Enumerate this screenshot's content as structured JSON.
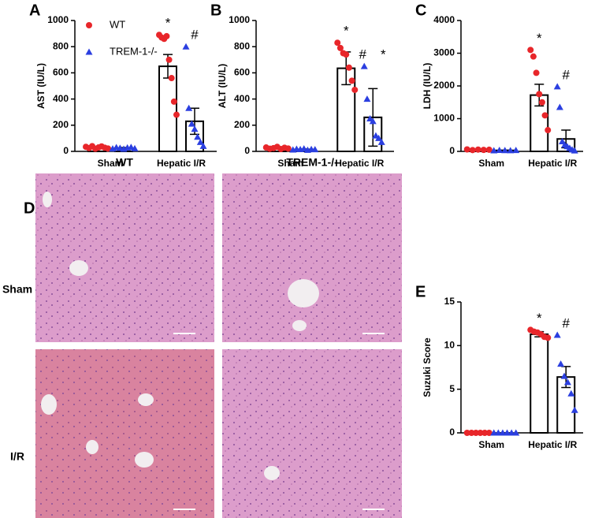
{
  "chart_data": [
    {
      "type": "bar",
      "panel": "A",
      "ylabel": "AST (IU/L)",
      "categories": [
        "Sham",
        "Hepatic I/R"
      ],
      "ylim": [
        0,
        1000
      ],
      "yticks": [
        0,
        200,
        400,
        600,
        800,
        1000
      ],
      "legend": "upper left",
      "series": [
        {
          "name": "WT",
          "color": "#e8262a",
          "marker": "circle",
          "values": [
            30,
            650
          ],
          "errors": [
            5,
            90
          ],
          "points": [
            [
              35,
              25,
              40,
              20,
              30,
              38,
              28,
              22
            ],
            [
              890,
              870,
              860,
              880,
              700,
              560,
              380,
              280
            ]
          ]
        },
        {
          "name": "TREM-1-/-",
          "color": "#2b3fe0",
          "marker": "triangle",
          "values": [
            25,
            230
          ],
          "errors": [
            4,
            100
          ],
          "points": [
            [
              20,
              30,
              25,
              18,
              28,
              32,
              22
            ],
            [
              800,
              330,
              210,
              170,
              110,
              70,
              40
            ]
          ]
        }
      ],
      "annotations": [
        {
          "text": "*",
          "series": 0,
          "category": 1
        },
        {
          "text": "#",
          "series": 1,
          "category": 1
        }
      ]
    },
    {
      "type": "bar",
      "panel": "B",
      "ylabel": "ALT (IU/L)",
      "categories": [
        "Sham",
        "Hepatic I/R"
      ],
      "ylim": [
        0,
        1000
      ],
      "yticks": [
        0,
        200,
        400,
        600,
        800,
        1000
      ],
      "series": [
        {
          "name": "WT",
          "color": "#e8262a",
          "marker": "circle",
          "values": [
            25,
            635
          ],
          "errors": [
            5,
            125
          ],
          "points": [
            [
              30,
              20,
              25,
              35,
              18,
              28,
              22
            ],
            [
              830,
              790,
              750,
              740,
              640,
              540,
              470
            ]
          ]
        },
        {
          "name": "TREM-1-/-",
          "color": "#2b3fe0",
          "marker": "triangle",
          "values": [
            15,
            260
          ],
          "errors": [
            3,
            220
          ],
          "points": [
            [
              12,
              18,
              15,
              20,
              10,
              16,
              14
            ],
            [
              650,
              400,
              250,
              230,
              120,
              100,
              70
            ]
          ]
        }
      ],
      "annotations": [
        {
          "text": "*",
          "series": 0,
          "category": 1
        },
        {
          "text": "#",
          "series": 1,
          "category": 1
        },
        {
          "text": "*",
          "series": 1,
          "category": 1
        }
      ]
    },
    {
      "type": "bar",
      "panel": "C",
      "ylabel": "LDH (IU/L)",
      "categories": [
        "Sham",
        "Hepatic I/R"
      ],
      "ylim": [
        0,
        4000
      ],
      "yticks": [
        0,
        1000,
        2000,
        3000,
        4000
      ],
      "series": [
        {
          "name": "WT",
          "color": "#e8262a",
          "marker": "circle",
          "values": [
            50,
            1720
          ],
          "errors": [
            10,
            330
          ],
          "points": [
            [
              60,
              40,
              55,
              45,
              50
            ],
            [
              3100,
              2900,
              2400,
              1750,
              1500,
              1100,
              650
            ]
          ]
        },
        {
          "name": "TREM-1-/-",
          "color": "#2b3fe0",
          "marker": "triangle",
          "values": [
            30,
            380
          ],
          "errors": [
            6,
            270
          ],
          "points": [
            [
              25,
              35,
              30,
              28,
              32
            ],
            [
              1980,
              1350,
              300,
              200,
              150,
              100,
              50,
              20
            ]
          ]
        }
      ],
      "annotations": [
        {
          "text": "*",
          "series": 0,
          "category": 1
        },
        {
          "text": "#",
          "series": 1,
          "category": 1
        }
      ]
    },
    {
      "type": "bar",
      "panel": "E",
      "ylabel": "Suzuki Score",
      "categories": [
        "Sham",
        "Hepatic I/R"
      ],
      "ylim": [
        0,
        15
      ],
      "yticks": [
        0,
        5,
        10,
        15
      ],
      "series": [
        {
          "name": "WT",
          "color": "#e8262a",
          "marker": "circle",
          "values": [
            0,
            11.3
          ],
          "errors": [
            0,
            0.3
          ],
          "points": [
            [
              0,
              0,
              0,
              0,
              0,
              0
            ],
            [
              11.8,
              11.6,
              11.5,
              11.3,
              11.0,
              10.9
            ]
          ]
        },
        {
          "name": "TREM-1-/-",
          "color": "#2b3fe0",
          "marker": "triangle",
          "values": [
            0,
            6.4
          ],
          "errors": [
            0,
            1.2
          ],
          "points": [
            [
              0,
              0,
              0,
              0,
              0,
              0
            ],
            [
              11.2,
              7.9,
              6.5,
              5.8,
              4.5,
              2.6
            ]
          ]
        }
      ],
      "annotations": [
        {
          "text": "*",
          "series": 0,
          "category": 1
        },
        {
          "text": "#",
          "series": 1,
          "category": 1
        }
      ]
    }
  ],
  "histology": {
    "panel": "D",
    "columns": [
      "WT",
      "TREM-1-/-"
    ],
    "rows": [
      "Sham",
      "I/R"
    ]
  }
}
